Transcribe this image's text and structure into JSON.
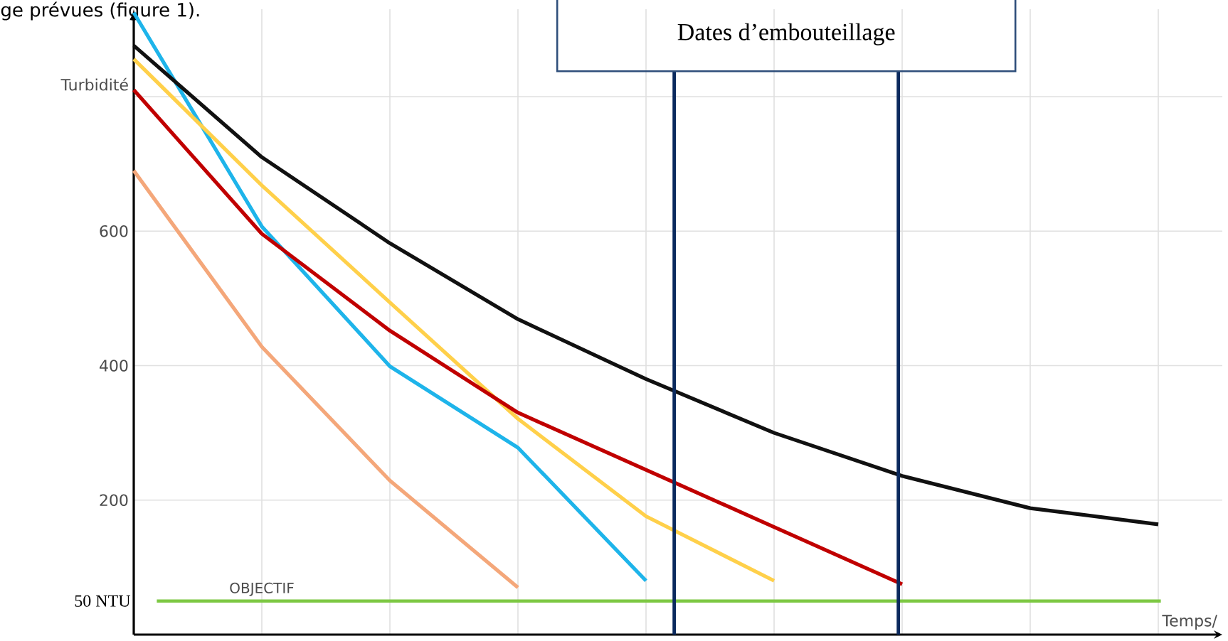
{
  "chart_data": {
    "type": "line",
    "xlabel": "Temps/",
    "ylabel": "Turbidité",
    "categories": [
      null,
      null,
      null,
      null,
      null,
      null,
      null,
      null,
      null
    ],
    "ylim": [
      0,
      930
    ],
    "yticks": [
      200,
      400,
      600,
      {
        "value": 800,
        "label": null
      }
    ],
    "grid": true,
    "tick_labels": "y",
    "series": [
      {
        "color": "#1eb4ea",
        "values": [
          925,
          607,
          399,
          278,
          80,
          null,
          null,
          null,
          null
        ]
      },
      {
        "color": "#f4a77a",
        "values": [
          690,
          428,
          229,
          70,
          null,
          null,
          null,
          null,
          null
        ]
      },
      {
        "color": "#ffd04a",
        "values": [
          856,
          668,
          494,
          321,
          176,
          80,
          null,
          null,
          null
        ]
      },
      {
        "color": "#c00000",
        "values": [
          810,
          596,
          452,
          330,
          245,
          160,
          75,
          null,
          null
        ]
      },
      {
        "color": "#111111",
        "values": [
          876,
          710,
          582,
          469,
          380,
          300,
          236,
          188,
          164
        ]
      }
    ],
    "ref_lines": [
      {
        "axis": "y",
        "value": 50,
        "label": "50 NTU",
        "color": "#7dc843"
      }
    ],
    "annotations": [
      "ge prévues (figure 1).",
      "Dates d’embouteillage",
      {
        "text": "OBJECTIF",
        "y": 50
      }
    ]
  }
}
